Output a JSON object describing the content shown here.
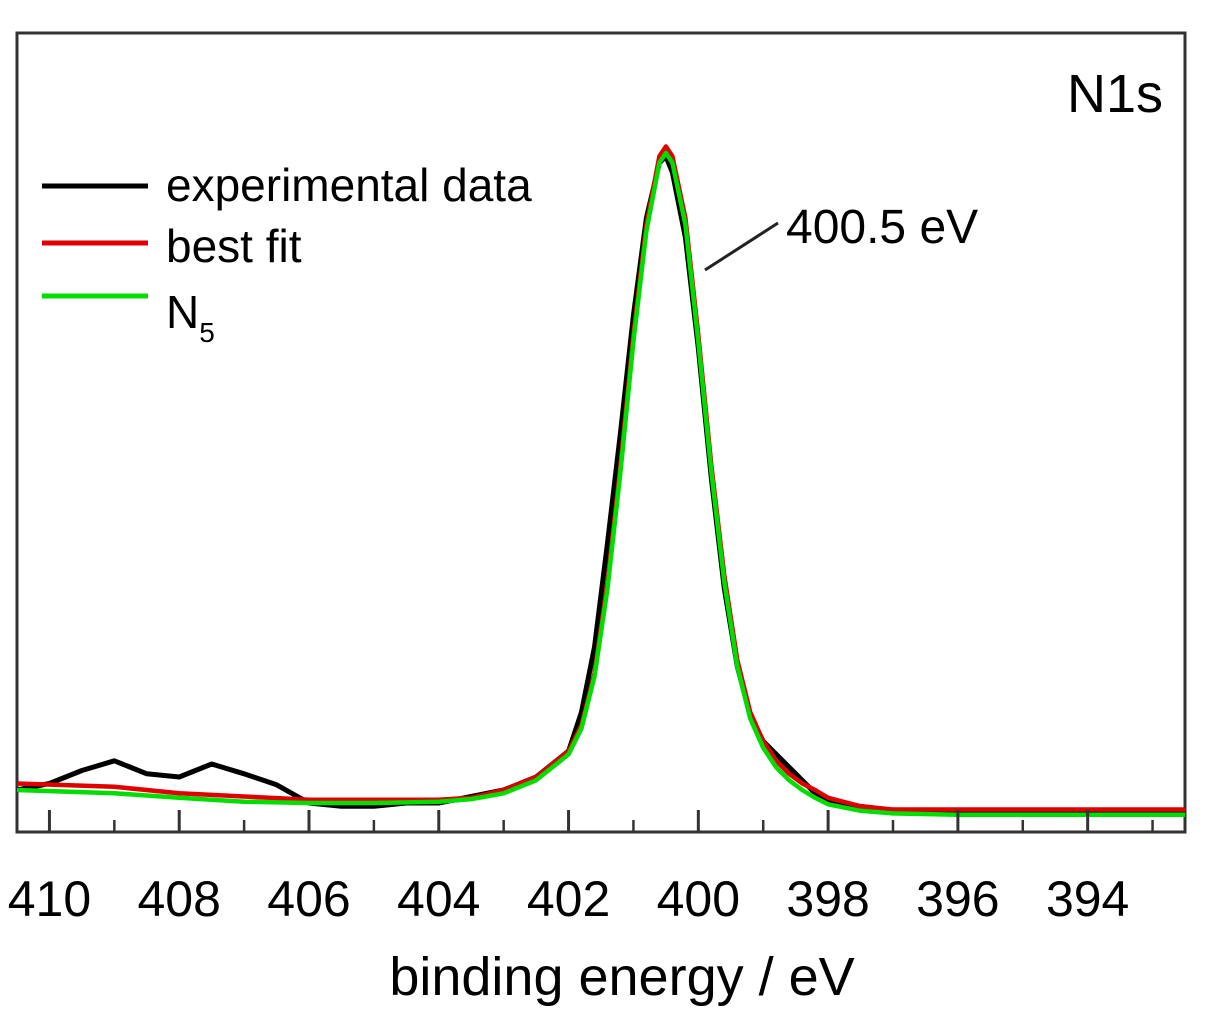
{
  "chart_data": {
    "type": "line",
    "panel_label": "N1s",
    "xlabel": "binding energy / eV",
    "ylabel": "",
    "xlim": [
      410.5,
      392.5
    ],
    "x_reversed": true,
    "x_ticks": [
      410,
      408,
      406,
      404,
      402,
      400,
      398,
      396,
      394
    ],
    "y_ticks_shown": false,
    "ylim": [
      0,
      1.0
    ],
    "grid": false,
    "legend_position": "top-left",
    "legend": [
      {
        "label": "experimental data",
        "color": "#000000"
      },
      {
        "label": "best fit",
        "color": "#e00000"
      },
      {
        "label": "N",
        "subscript": "5",
        "color": "#00dd00"
      }
    ],
    "annotation": {
      "text": "400.5 eV",
      "x": 400.5
    },
    "series": [
      {
        "name": "experimental data",
        "color": "#000000",
        "x": [
          410.5,
          410.0,
          409.5,
          409.0,
          408.5,
          408.0,
          407.5,
          407.0,
          406.5,
          406.0,
          405.5,
          405.0,
          404.5,
          404.0,
          403.5,
          403.0,
          402.5,
          402.0,
          401.8,
          401.6,
          401.4,
          401.2,
          401.0,
          400.8,
          400.6,
          400.5,
          400.4,
          400.2,
          400.0,
          399.8,
          399.6,
          399.4,
          399.2,
          399.0,
          398.8,
          398.6,
          398.4,
          398.2,
          398.0,
          397.5,
          397.1,
          397.0,
          396.0,
          395.0,
          394.0,
          393.0,
          392.5
        ],
        "y": [
          0.0,
          0.01,
          0.03,
          0.045,
          0.025,
          0.02,
          0.04,
          0.025,
          0.008,
          -0.02,
          -0.025,
          -0.025,
          -0.02,
          -0.02,
          -0.01,
          0.0,
          0.02,
          0.06,
          0.12,
          0.22,
          0.38,
          0.55,
          0.73,
          0.88,
          0.965,
          0.975,
          0.95,
          0.85,
          0.68,
          0.48,
          0.31,
          0.19,
          0.115,
          0.075,
          0.055,
          0.035,
          0.015,
          -0.005,
          -0.018,
          -0.025,
          -0.03,
          -0.035,
          -0.035,
          -0.035,
          -0.035,
          -0.035,
          -0.035
        ]
      },
      {
        "name": "best fit",
        "color": "#e00000",
        "x": [
          410.5,
          409.0,
          408.0,
          407.0,
          406.0,
          405.0,
          404.0,
          403.5,
          403.0,
          402.5,
          402.0,
          401.8,
          401.6,
          401.4,
          401.2,
          401.0,
          400.8,
          400.6,
          400.5,
          400.4,
          400.2,
          400.0,
          399.8,
          399.6,
          399.4,
          399.2,
          399.0,
          398.8,
          398.6,
          398.4,
          398.2,
          398.0,
          397.5,
          397.0,
          396.0,
          394.0,
          392.5
        ],
        "y": [
          0.01,
          0.005,
          -0.005,
          -0.01,
          -0.015,
          -0.015,
          -0.015,
          -0.012,
          0.0,
          0.02,
          0.06,
          0.1,
          0.18,
          0.32,
          0.5,
          0.7,
          0.87,
          0.975,
          0.99,
          0.975,
          0.88,
          0.7,
          0.5,
          0.33,
          0.2,
          0.12,
          0.075,
          0.045,
          0.025,
          0.01,
          0.0,
          -0.012,
          -0.025,
          -0.03,
          -0.03,
          -0.03,
          -0.03
        ]
      },
      {
        "name": "N5",
        "color": "#00dd00",
        "x": [
          410.5,
          409.0,
          408.0,
          407.0,
          406.0,
          405.0,
          404.0,
          403.5,
          403.0,
          402.5,
          402.0,
          401.8,
          401.6,
          401.4,
          401.2,
          401.0,
          400.8,
          400.6,
          400.5,
          400.4,
          400.2,
          400.0,
          399.8,
          399.6,
          399.4,
          399.2,
          399.0,
          398.8,
          398.6,
          398.4,
          398.2,
          398.0,
          397.5,
          397.0,
          396.0,
          394.0,
          392.5
        ],
        "y": [
          0.0,
          -0.005,
          -0.012,
          -0.018,
          -0.02,
          -0.02,
          -0.018,
          -0.014,
          -0.005,
          0.015,
          0.055,
          0.095,
          0.175,
          0.31,
          0.49,
          0.69,
          0.86,
          0.965,
          0.98,
          0.965,
          0.87,
          0.69,
          0.49,
          0.32,
          0.19,
          0.11,
          0.065,
          0.035,
          0.015,
          0.0,
          -0.012,
          -0.022,
          -0.032,
          -0.036,
          -0.038,
          -0.038,
          -0.038
        ]
      }
    ]
  }
}
